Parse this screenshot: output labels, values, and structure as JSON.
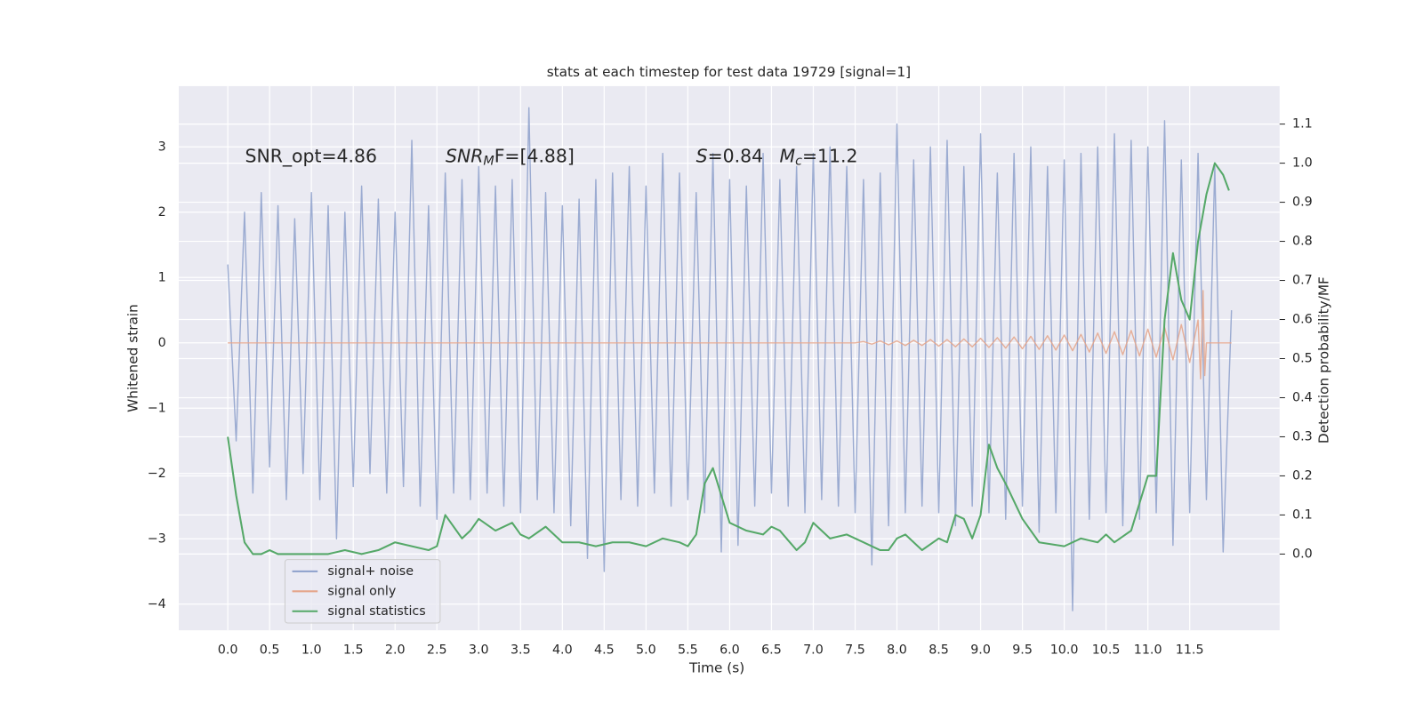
{
  "chart_data": {
    "type": "line",
    "title": "stats at each timestep for test data 19729 [signal=1]",
    "xlabel": "Time (s)",
    "ylabel": "Whitened strain",
    "y2label": "Detection probability/MF",
    "annotations": [
      [
        "SNR_opt=4.86"
      ],
      [
        "SNR",
        "M",
        "F=[4.88]"
      ],
      [
        "S",
        "=0.84"
      ],
      [
        "M",
        "c",
        "=11.2"
      ]
    ],
    "xlim": [
      -0.586,
      12.575
    ],
    "ylim": [
      -4.4,
      3.93
    ],
    "y2lim": [
      -0.195,
      1.197
    ],
    "xticks": [
      {
        "value": 0,
        "label": "0.0"
      },
      0.5,
      {
        "value": 1,
        "label": "1.0"
      },
      1.5,
      {
        "value": 2,
        "label": "2.0"
      },
      2.5,
      {
        "value": 3,
        "label": "3.0"
      },
      3.5,
      {
        "value": 4,
        "label": "4.0"
      },
      4.5,
      {
        "value": 5,
        "label": "5.0"
      },
      5.5,
      {
        "value": 6,
        "label": "6.0"
      },
      6.5,
      {
        "value": 7,
        "label": "7.0"
      },
      7.5,
      {
        "value": 8,
        "label": "8.0"
      },
      8.5,
      {
        "value": 9,
        "label": "9.0"
      },
      9.5,
      {
        "value": 10,
        "label": "10.0"
      },
      10.5,
      {
        "value": 11,
        "label": "11.0"
      },
      11.5
    ],
    "yticks": [
      {
        "value": -4,
        "label": "−4"
      },
      {
        "value": -3,
        "label": "−3"
      },
      {
        "value": -2,
        "label": "−2"
      },
      {
        "value": -1,
        "label": "−1"
      },
      0,
      1,
      2,
      3
    ],
    "y2ticks": [
      {
        "value": 0,
        "label": "0.0"
      },
      0.1,
      0.2,
      0.3,
      0.4,
      0.5,
      0.6,
      0.7,
      0.8,
      0.9,
      {
        "value": 1,
        "label": "1.0"
      },
      1.1
    ],
    "grid": true,
    "legend": "lower left",
    "series": [
      {
        "name": "signal+ noise",
        "color": "#8da0cb",
        "x": [
          0,
          0.1,
          0.2,
          0.3,
          0.4,
          0.5,
          0.6,
          0.7,
          0.8,
          0.9,
          1.0,
          1.1,
          1.2,
          1.3,
          1.4,
          1.5,
          1.6,
          1.7,
          1.8,
          1.9,
          2.0,
          2.1,
          2.2,
          2.3,
          2.4,
          2.5,
          2.6,
          2.7,
          2.8,
          2.9,
          3.0,
          3.1,
          3.2,
          3.3,
          3.4,
          3.5,
          3.6,
          3.7,
          3.8,
          3.9,
          4.0,
          4.1,
          4.2,
          4.3,
          4.4,
          4.5,
          4.6,
          4.7,
          4.8,
          4.9,
          5.0,
          5.1,
          5.2,
          5.3,
          5.4,
          5.5,
          5.6,
          5.7,
          5.8,
          5.9,
          6.0,
          6.1,
          6.2,
          6.3,
          6.4,
          6.5,
          6.6,
          6.7,
          6.8,
          6.9,
          7.0,
          7.1,
          7.2,
          7.3,
          7.4,
          7.5,
          7.6,
          7.7,
          7.8,
          7.9,
          8.0,
          8.1,
          8.2,
          8.3,
          8.4,
          8.5,
          8.6,
          8.7,
          8.8,
          8.9,
          9.0,
          9.1,
          9.2,
          9.3,
          9.4,
          9.5,
          9.6,
          9.7,
          9.8,
          9.9,
          10.0,
          10.1,
          10.2,
          10.3,
          10.4,
          10.5,
          10.6,
          10.7,
          10.8,
          10.9,
          11.0,
          11.1,
          11.2,
          11.3,
          11.4,
          11.5,
          11.6,
          11.7,
          11.8,
          11.9,
          12.0
        ],
        "values": [
          1.2,
          -1.5,
          2.0,
          -2.3,
          2.3,
          -1.9,
          2.1,
          -2.4,
          1.9,
          -2.0,
          2.3,
          -2.4,
          2.1,
          -3.0,
          2.0,
          -2.2,
          2.4,
          -2.0,
          2.2,
          -2.3,
          2.0,
          -2.2,
          3.1,
          -2.5,
          2.1,
          -2.7,
          2.6,
          -2.3,
          2.5,
          -2.4,
          2.7,
          -2.3,
          2.4,
          -2.5,
          2.5,
          -2.6,
          3.6,
          -2.4,
          2.3,
          -2.6,
          2.1,
          -2.8,
          2.2,
          -3.3,
          2.5,
          -3.5,
          2.6,
          -2.4,
          2.7,
          -2.5,
          2.4,
          -2.3,
          2.9,
          -2.5,
          2.6,
          -2.4,
          2.3,
          -2.6,
          2.9,
          -3.2,
          2.5,
          -3.1,
          2.4,
          -2.5,
          2.9,
          -2.3,
          2.5,
          -2.5,
          2.7,
          -2.6,
          2.9,
          -2.4,
          3.0,
          -2.5,
          2.7,
          -2.6,
          2.5,
          -3.4,
          2.6,
          -2.8,
          3.35,
          -2.6,
          2.8,
          -2.5,
          3.0,
          -2.6,
          3.1,
          -2.8,
          2.7,
          -2.5,
          3.2,
          -2.6,
          2.6,
          -2.7,
          2.9,
          -2.5,
          3.0,
          -2.9,
          2.7,
          -2.6,
          2.8,
          -4.1,
          2.9,
          -2.7,
          3.0,
          -2.6,
          3.2,
          -2.8,
          3.1,
          -2.7,
          3.0,
          -2.6,
          3.4,
          -3.1,
          2.8,
          -2.6,
          2.9,
          -2.4,
          2.7,
          -3.2,
          0.5
        ]
      },
      {
        "name": "signal only",
        "color": "#e5a58a",
        "x": [
          0,
          7.5,
          7.6,
          7.7,
          7.8,
          7.9,
          8.0,
          8.1,
          8.2,
          8.3,
          8.4,
          8.5,
          8.6,
          8.7,
          8.8,
          8.9,
          9.0,
          9.1,
          9.2,
          9.3,
          9.4,
          9.5,
          9.6,
          9.7,
          9.8,
          9.9,
          10.0,
          10.1,
          10.2,
          10.3,
          10.4,
          10.5,
          10.6,
          10.7,
          10.8,
          10.9,
          11.0,
          11.1,
          11.2,
          11.3,
          11.4,
          11.5,
          11.6,
          11.63,
          11.66,
          11.68,
          11.7,
          12.0
        ],
        "values": [
          0,
          0,
          0.02,
          -0.02,
          0.03,
          -0.03,
          0.03,
          -0.04,
          0.04,
          -0.04,
          0.05,
          -0.05,
          0.05,
          -0.06,
          0.06,
          -0.06,
          0.07,
          -0.07,
          0.08,
          -0.08,
          0.09,
          -0.09,
          0.1,
          -0.1,
          0.11,
          -0.11,
          0.12,
          -0.12,
          0.13,
          -0.14,
          0.15,
          -0.16,
          0.17,
          -0.18,
          0.19,
          -0.2,
          0.21,
          -0.22,
          0.24,
          -0.26,
          0.28,
          -0.3,
          0.35,
          -0.55,
          0.8,
          -0.5,
          0,
          0
        ]
      },
      {
        "name": "signal statistics",
        "color": "#55a868",
        "axis": "y2",
        "x": [
          0,
          0.1,
          0.2,
          0.3,
          0.4,
          0.5,
          0.6,
          0.8,
          1.0,
          1.2,
          1.4,
          1.6,
          1.8,
          2.0,
          2.2,
          2.4,
          2.5,
          2.6,
          2.7,
          2.8,
          2.9,
          3.0,
          3.2,
          3.4,
          3.5,
          3.6,
          3.8,
          4.0,
          4.2,
          4.4,
          4.6,
          4.8,
          5.0,
          5.2,
          5.4,
          5.5,
          5.6,
          5.7,
          5.8,
          5.9,
          6.0,
          6.2,
          6.4,
          6.5,
          6.6,
          6.8,
          6.9,
          7.0,
          7.2,
          7.4,
          7.6,
          7.8,
          7.9,
          8.0,
          8.1,
          8.3,
          8.5,
          8.6,
          8.7,
          8.8,
          8.9,
          9.0,
          9.1,
          9.2,
          9.3,
          9.5,
          9.7,
          10.0,
          10.2,
          10.4,
          10.5,
          10.6,
          10.8,
          11.0,
          11.1,
          11.2,
          11.3,
          11.4,
          11.5,
          11.6,
          11.7,
          11.8,
          11.9,
          11.97
        ],
        "values": [
          0.3,
          0.15,
          0.03,
          0.0,
          0.0,
          0.01,
          0.0,
          0.0,
          0.0,
          0.0,
          0.01,
          0.0,
          0.01,
          0.03,
          0.02,
          0.01,
          0.02,
          0.1,
          0.07,
          0.04,
          0.06,
          0.09,
          0.06,
          0.08,
          0.05,
          0.04,
          0.07,
          0.03,
          0.03,
          0.02,
          0.03,
          0.03,
          0.02,
          0.04,
          0.03,
          0.02,
          0.05,
          0.18,
          0.22,
          0.15,
          0.08,
          0.06,
          0.05,
          0.07,
          0.06,
          0.01,
          0.03,
          0.08,
          0.04,
          0.05,
          0.03,
          0.01,
          0.01,
          0.04,
          0.05,
          0.01,
          0.04,
          0.03,
          0.1,
          0.09,
          0.04,
          0.1,
          0.28,
          0.22,
          0.18,
          0.09,
          0.03,
          0.02,
          0.04,
          0.03,
          0.05,
          0.03,
          0.06,
          0.2,
          0.2,
          0.6,
          0.77,
          0.65,
          0.6,
          0.8,
          0.92,
          1.0,
          0.97,
          0.93
        ]
      }
    ]
  }
}
